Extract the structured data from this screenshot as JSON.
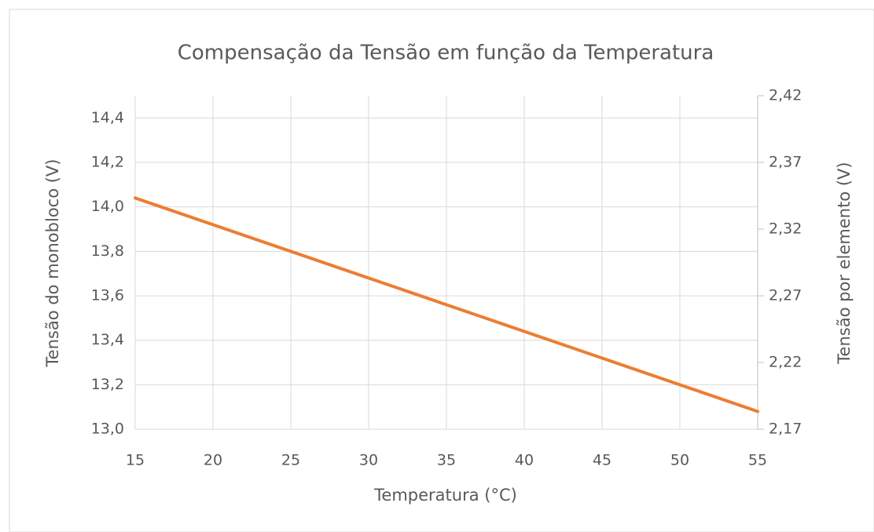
{
  "chart_data": {
    "type": "line",
    "title": "Compensação da Tensão em função da Temperatura",
    "x_label": "Temperatura (°C)",
    "y_label": "Tensão do monobloco (V)",
    "y2_label": "Tensão por elemento (V)",
    "x": [
      15,
      20,
      25,
      30,
      35,
      40,
      45,
      50,
      55
    ],
    "values": [
      14.04,
      13.92,
      13.8,
      13.68,
      13.56,
      13.44,
      13.32,
      13.2,
      13.08
    ],
    "color": "#ed7d31",
    "xlim": [
      15,
      55
    ],
    "xticks": [
      15,
      20,
      25,
      30,
      35,
      40,
      45,
      50,
      55
    ],
    "ylim": [
      13.0,
      14.5
    ],
    "yticks": [
      {
        "value": 13.0,
        "label": "13,0"
      },
      {
        "value": 13.2,
        "label": "13,2"
      },
      {
        "value": 13.4,
        "label": "13,4"
      },
      {
        "value": 13.6,
        "label": "13,6"
      },
      {
        "value": 13.8,
        "label": "13,8"
      },
      {
        "value": 14.0,
        "label": "14,0"
      },
      {
        "value": 14.2,
        "label": "14,2"
      },
      {
        "value": 14.4,
        "label": "14,4"
      }
    ],
    "y2lim": [
      2.17,
      2.42
    ],
    "y2ticks": [
      {
        "value": 2.17,
        "label": "2,17"
      },
      {
        "value": 2.22,
        "label": "2,22"
      },
      {
        "value": 2.27,
        "label": "2,27"
      },
      {
        "value": 2.32,
        "label": "2,32"
      },
      {
        "value": 2.37,
        "label": "2,37"
      },
      {
        "value": 2.42,
        "label": "2,42"
      }
    ],
    "grid": true
  }
}
